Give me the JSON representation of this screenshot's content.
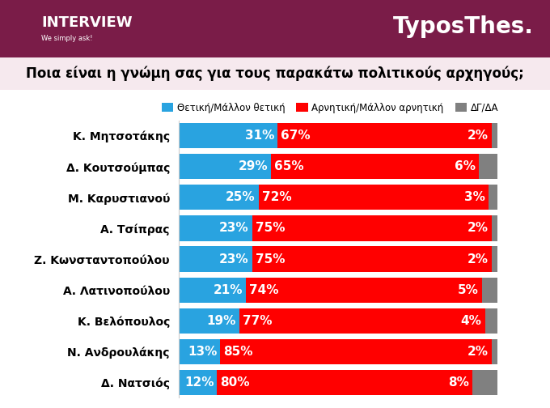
{
  "chart_data": {
    "type": "bar",
    "orientation": "horizontal",
    "stacked": true,
    "title": "Ποια είναι η γνώμη σας για τους παρακάτω πολιτικούς αρχηγούς;",
    "annotations": [
      "INTERVIEW",
      "We simply ask!",
      "TyposThes."
    ],
    "categories": [
      "Κ. Μητσοτάκης",
      "Δ. Κουτσούμπας",
      "Μ. Καρυστιανού",
      "Α. Τσίπρας",
      "Ζ. Κωνσταντοπούλου",
      "Α. Λατινοπούλου",
      "Κ. Βελόπουλος",
      "Ν. Ανδρουλάκης",
      "Δ. Νατσιός"
    ],
    "series": [
      {
        "name": "Θετική/Μάλλον θετική",
        "color": "#29a3e0",
        "values": [
          31,
          29,
          25,
          23,
          23,
          21,
          19,
          13,
          12
        ],
        "value_labels": [
          "31%",
          "29%",
          "25%",
          "23%",
          "23%",
          "21%",
          "19%",
          "13%",
          "12%"
        ]
      },
      {
        "name": "Αρνητική/Μάλλον αρνητική",
        "color": "#ff0000",
        "values": [
          67,
          65,
          72,
          75,
          75,
          74,
          77,
          85,
          80
        ],
        "value_labels": [
          "67%",
          "65%",
          "72%",
          "75%",
          "75%",
          "74%",
          "77%",
          "85%",
          "80%"
        ]
      },
      {
        "name": "ΔΓ/ΔΑ",
        "color": "#808080",
        "values": [
          2,
          6,
          3,
          2,
          2,
          5,
          4,
          2,
          8
        ],
        "value_labels": [
          "2%",
          "6%",
          "3%",
          "2%",
          "2%",
          "5%",
          "4%",
          "2%",
          "8%"
        ]
      }
    ],
    "xlim": [
      0,
      100
    ],
    "data_labels": true,
    "tick_labels": "y",
    "legend": "upper center"
  }
}
